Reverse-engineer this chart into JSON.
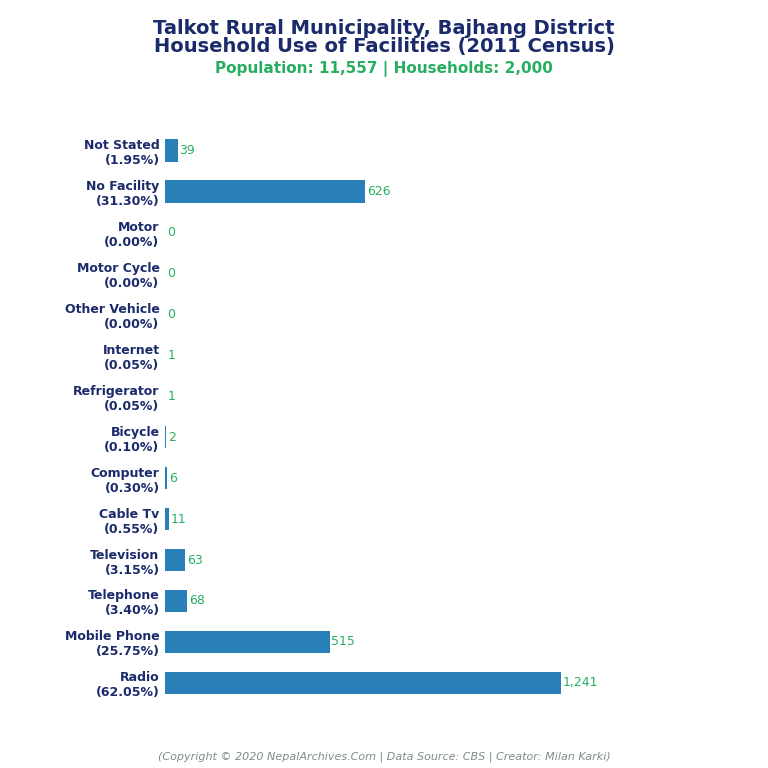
{
  "title_line1": "Talkot Rural Municipality, Bajhang District",
  "title_line2": "Household Use of Facilities (2011 Census)",
  "subtitle": "Population: 11,557 | Households: 2,000",
  "footer": "(Copyright © 2020 NepalArchives.Com | Data Source: CBS | Creator: Milan Karki)",
  "categories": [
    "Not Stated\n(1.95%)",
    "No Facility\n(31.30%)",
    "Motor\n(0.00%)",
    "Motor Cycle\n(0.00%)",
    "Other Vehicle\n(0.00%)",
    "Internet\n(0.05%)",
    "Refrigerator\n(0.05%)",
    "Bicycle\n(0.10%)",
    "Computer\n(0.30%)",
    "Cable Tv\n(0.55%)",
    "Television\n(3.15%)",
    "Telephone\n(3.40%)",
    "Mobile Phone\n(25.75%)",
    "Radio\n(62.05%)"
  ],
  "values": [
    39,
    626,
    0,
    0,
    0,
    1,
    1,
    2,
    6,
    11,
    63,
    68,
    515,
    1241
  ],
  "value_labels": [
    "39",
    "626",
    "0",
    "0",
    "0",
    "1",
    "1",
    "2",
    "6",
    "11",
    "63",
    "68",
    "515",
    "1,241"
  ],
  "bar_color": "#2980B9",
  "value_color": "#27AE60",
  "title_color": "#1B2A6B",
  "subtitle_color": "#27AE60",
  "footer_color": "#7F8C8D",
  "background_color": "#ffffff",
  "xlim_max": 1600,
  "bar_height": 0.55,
  "label_fontsize": 9,
  "value_fontsize": 9,
  "title_fontsize": 14,
  "subtitle_fontsize": 11,
  "footer_fontsize": 8
}
